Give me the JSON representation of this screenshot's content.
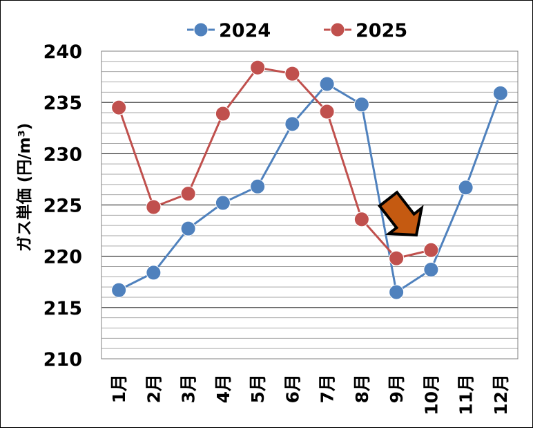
{
  "chart_data": {
    "type": "line",
    "categories": [
      "1月",
      "2月",
      "3月",
      "4月",
      "5月",
      "6月",
      "7月",
      "8月",
      "9月",
      "10月",
      "11月",
      "12月"
    ],
    "series": [
      {
        "name": "2024",
        "color": "#4f81bd",
        "values": [
          216.7,
          218.4,
          222.7,
          225.2,
          226.8,
          232.9,
          236.8,
          234.8,
          216.5,
          218.7,
          226.7,
          235.9
        ]
      },
      {
        "name": "2025",
        "color": "#c0504d",
        "values": [
          234.5,
          224.8,
          226.1,
          233.9,
          238.4,
          237.8,
          234.1,
          223.6,
          219.8,
          220.6,
          null,
          null
        ]
      }
    ],
    "title": "",
    "xlabel": "",
    "ylabel": "ガス単価 (円/m³)",
    "ylim": [
      210,
      240
    ],
    "yticks": [
      210,
      215,
      220,
      225,
      230,
      235,
      240
    ],
    "major_gridline_step": 5,
    "minor_gridline_step": 1,
    "grid": true,
    "legend_position": "top",
    "annotation": {
      "type": "arrow",
      "color": "#c55a11",
      "direction": "down-right",
      "points_to": "10月 2025"
    }
  }
}
